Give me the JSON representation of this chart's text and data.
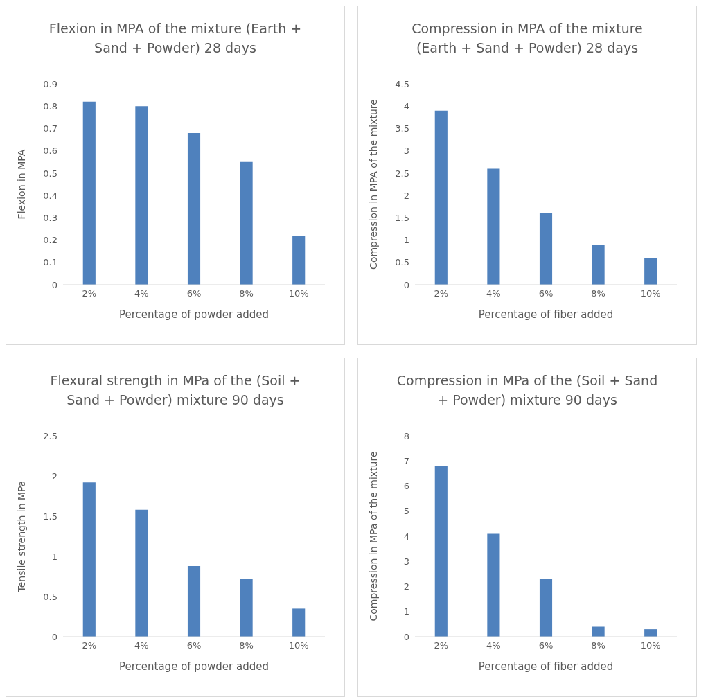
{
  "chart_data": [
    {
      "type": "bar",
      "title": "Flexion in MPA of the mixture (Earth + Sand + Powder) 28 days",
      "xlabel": "Percentage of powder added",
      "ylabel": "Flexion in MPA",
      "categories": [
        "2%",
        "4%",
        "6%",
        "8%",
        "10%"
      ],
      "values": [
        0.82,
        0.8,
        0.68,
        0.55,
        0.22
      ],
      "color": "#4f81bd",
      "ylim": [
        0,
        0.9
      ],
      "yticks": [
        0,
        0.1,
        0.2,
        0.3,
        0.4,
        0.5,
        0.6,
        0.7,
        0.8,
        0.9
      ]
    },
    {
      "type": "bar",
      "title": "Compression in MPA of the mixture (Earth + Sand + Powder) 28 days",
      "xlabel": "Percentage of fiber added",
      "ylabel": "Compression in MPA of the mixture",
      "categories": [
        "2%",
        "4%",
        "6%",
        "8%",
        "10%"
      ],
      "values": [
        3.9,
        2.6,
        1.6,
        0.9,
        0.6
      ],
      "color": "#4f81bd",
      "ylim": [
        0,
        4.5
      ],
      "yticks": [
        0,
        0.5,
        1,
        1.5,
        2,
        2.5,
        3,
        3.5,
        4,
        4.5
      ]
    },
    {
      "type": "bar",
      "title": "Flexural strength in MPa of the (Soil + Sand + Powder) mixture 90 days",
      "xlabel": "Percentage of powder added",
      "ylabel": "Tensile strength in MPa",
      "categories": [
        "2%",
        "4%",
        "6%",
        "8%",
        "10%"
      ],
      "values": [
        1.92,
        1.58,
        0.88,
        0.72,
        0.35
      ],
      "color": "#4f81bd",
      "ylim": [
        0,
        2.5
      ],
      "yticks": [
        0,
        0.5,
        1,
        1.5,
        2,
        2.5
      ]
    },
    {
      "type": "bar",
      "title": "Compression in MPa of the (Soil + Sand + Powder) mixture 90 days",
      "xlabel": "Percentage of fiber added",
      "ylabel": "Compression in MPa of the mixture",
      "categories": [
        "2%",
        "4%",
        "6%",
        "8%",
        "10%"
      ],
      "values": [
        6.8,
        4.1,
        2.3,
        0.4,
        0.3
      ],
      "color": "#4f81bd",
      "ylim": [
        0,
        8
      ],
      "yticks": [
        0,
        1,
        2,
        3,
        4,
        5,
        6,
        7,
        8
      ]
    }
  ]
}
